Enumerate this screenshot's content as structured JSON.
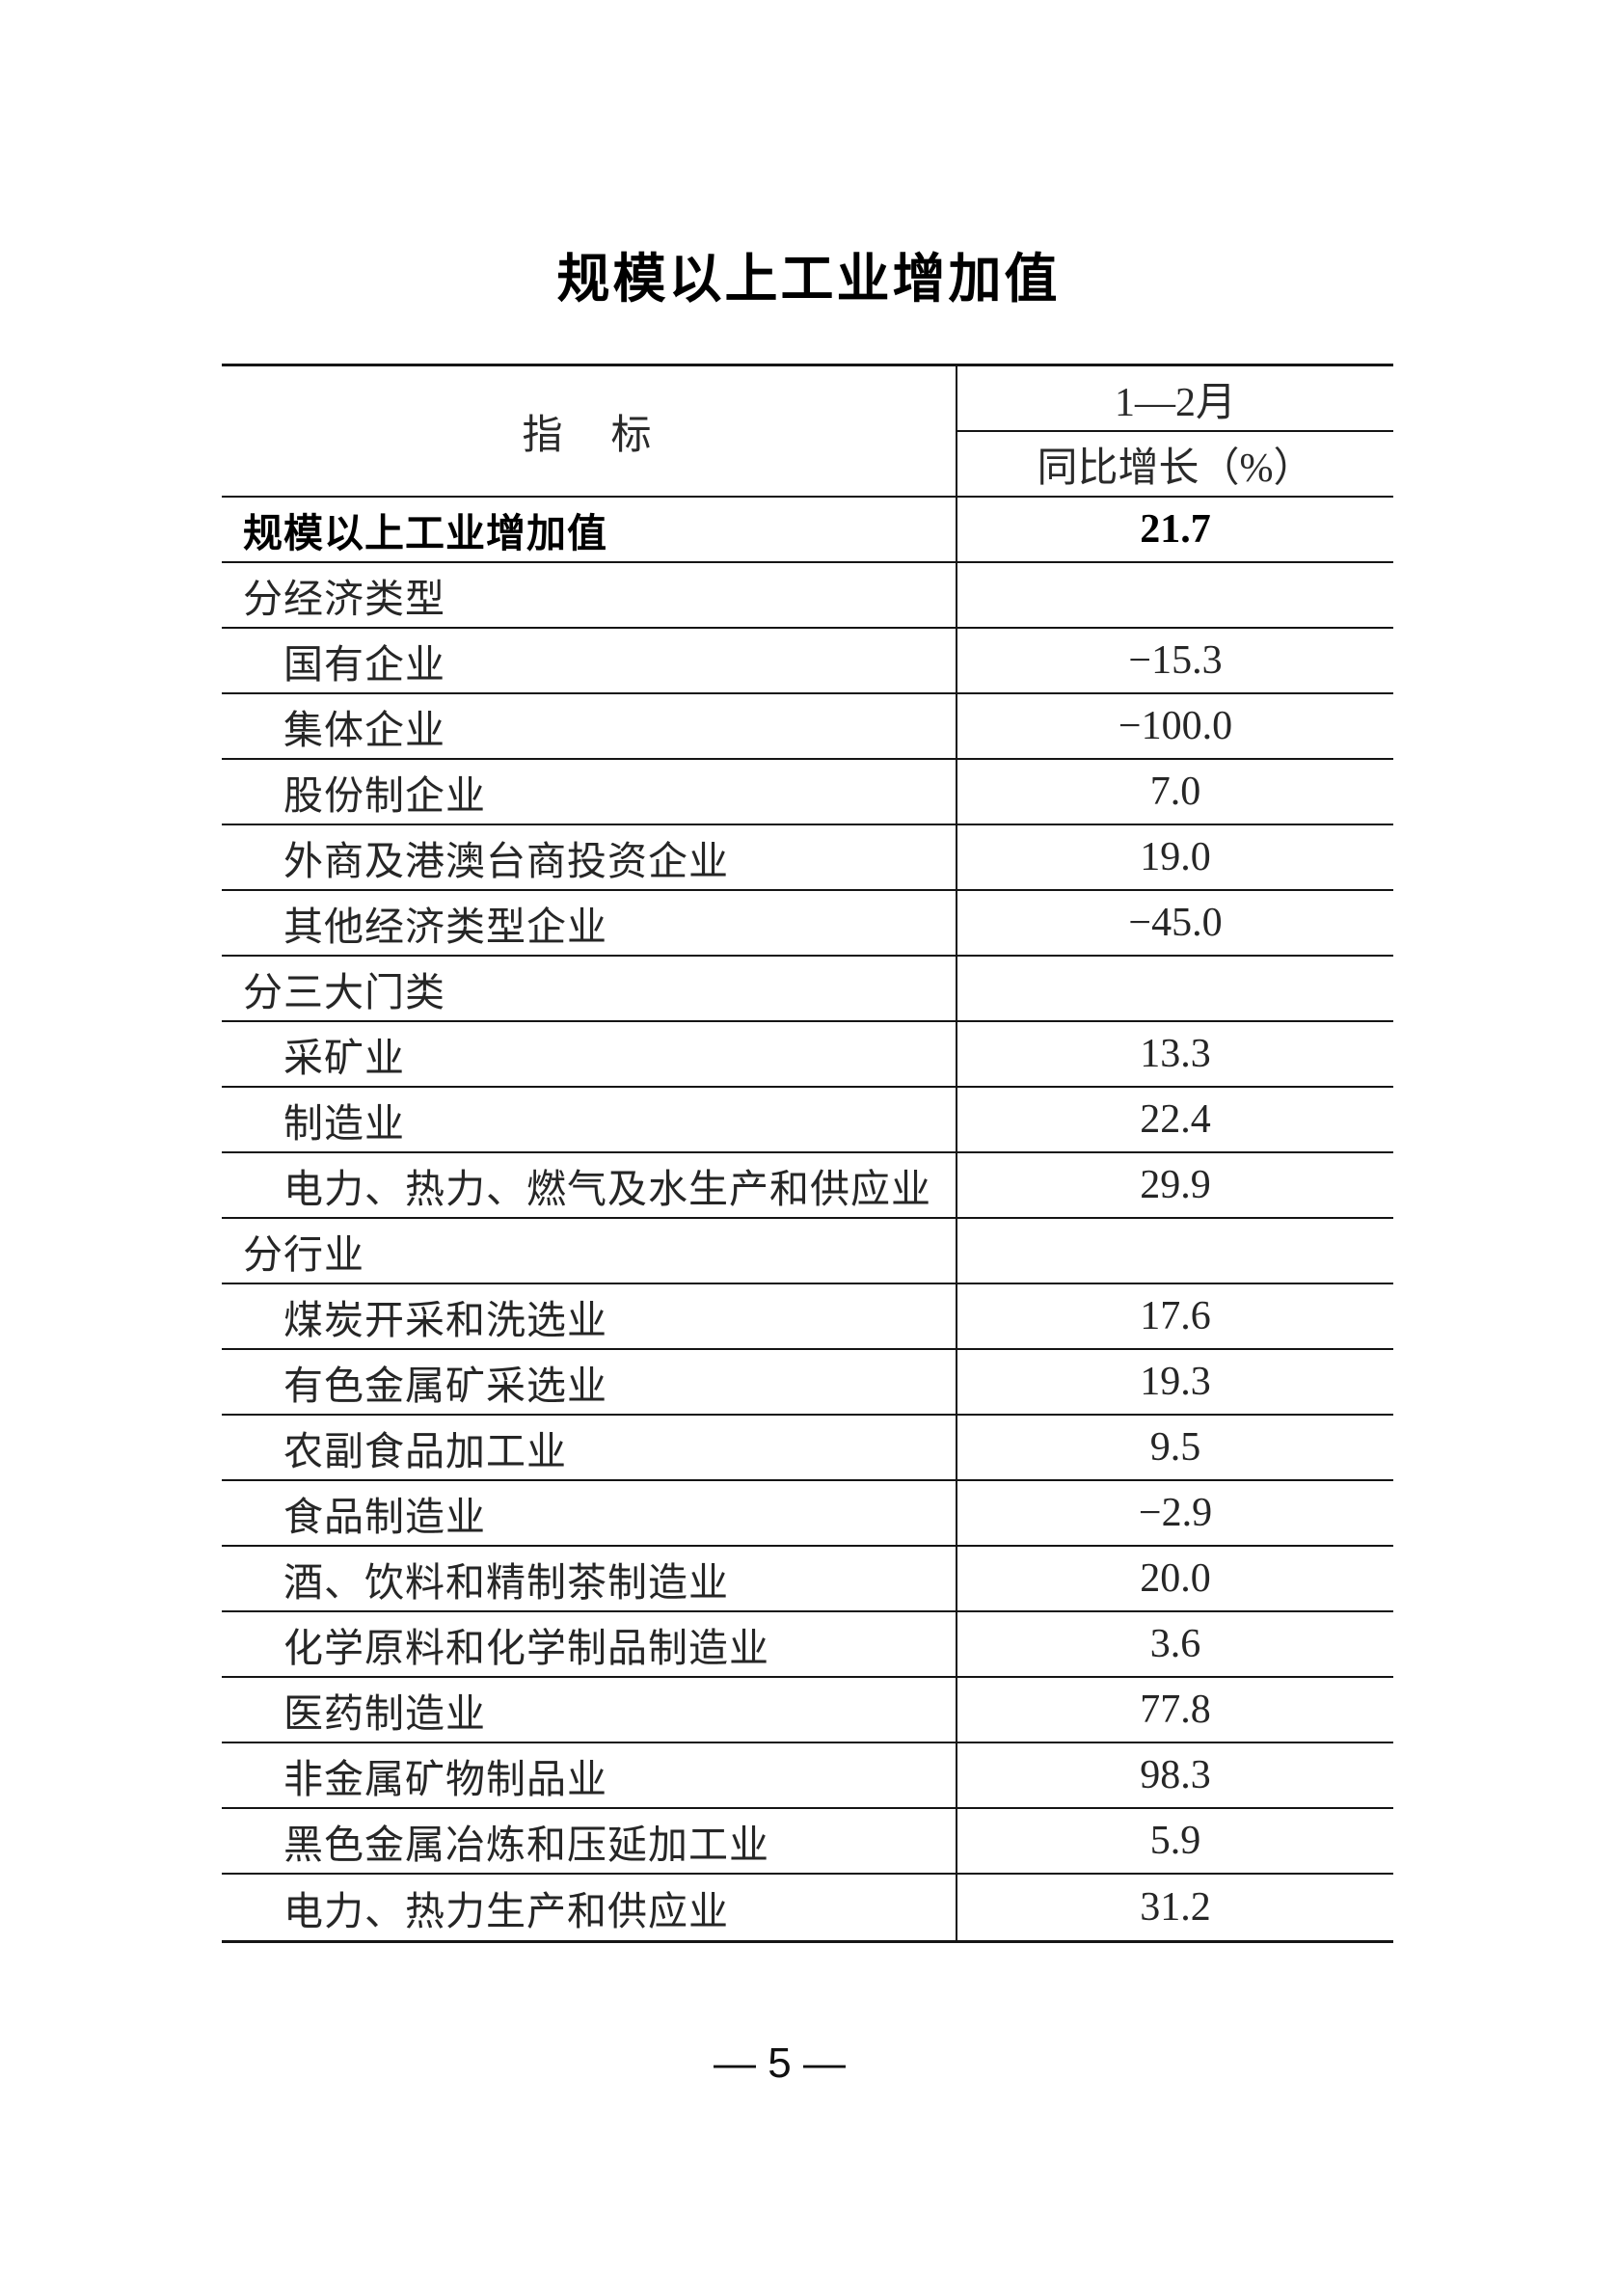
{
  "title": "规模以上工业增加值",
  "table": {
    "header": {
      "indicator": "指　标",
      "period": "1—2月",
      "metric": "同比增长（%）"
    },
    "rows": [
      {
        "label": "规模以上工业增加值",
        "value": "21.7",
        "indent": 0,
        "bold": true
      },
      {
        "label": "分经济类型",
        "value": "",
        "indent": 0,
        "bold": false
      },
      {
        "label": "国有企业",
        "value": "−15.3",
        "indent": 1,
        "bold": false
      },
      {
        "label": "集体企业",
        "value": "−100.0",
        "indent": 1,
        "bold": false
      },
      {
        "label": "股份制企业",
        "value": "7.0",
        "indent": 1,
        "bold": false
      },
      {
        "label": "外商及港澳台商投资企业",
        "value": "19.0",
        "indent": 1,
        "bold": false
      },
      {
        "label": "其他经济类型企业",
        "value": "−45.0",
        "indent": 1,
        "bold": false
      },
      {
        "label": "分三大门类",
        "value": "",
        "indent": 0,
        "bold": false
      },
      {
        "label": "采矿业",
        "value": "13.3",
        "indent": 1,
        "bold": false
      },
      {
        "label": "制造业",
        "value": "22.4",
        "indent": 1,
        "bold": false
      },
      {
        "label": "电力、热力、燃气及水生产和供应业",
        "value": "29.9",
        "indent": 1,
        "bold": false
      },
      {
        "label": "分行业",
        "value": "",
        "indent": 0,
        "bold": false
      },
      {
        "label": "煤炭开采和洗选业",
        "value": "17.6",
        "indent": 1,
        "bold": false
      },
      {
        "label": "有色金属矿采选业",
        "value": "19.3",
        "indent": 1,
        "bold": false
      },
      {
        "label": "农副食品加工业",
        "value": "9.5",
        "indent": 1,
        "bold": false
      },
      {
        "label": "食品制造业",
        "value": "−2.9",
        "indent": 1,
        "bold": false
      },
      {
        "label": "酒、饮料和精制茶制造业",
        "value": "20.0",
        "indent": 1,
        "bold": false
      },
      {
        "label": "化学原料和化学制品制造业",
        "value": "3.6",
        "indent": 1,
        "bold": false
      },
      {
        "label": "医药制造业",
        "value": "77.8",
        "indent": 1,
        "bold": false
      },
      {
        "label": "非金属矿物制品业",
        "value": "98.3",
        "indent": 1,
        "bold": false
      },
      {
        "label": "黑色金属冶炼和压延加工业",
        "value": "5.9",
        "indent": 1,
        "bold": false
      },
      {
        "label": "电力、热力生产和供应业",
        "value": "31.2",
        "indent": 1,
        "bold": false
      }
    ]
  },
  "footer": {
    "page_number": "— 5 —"
  }
}
